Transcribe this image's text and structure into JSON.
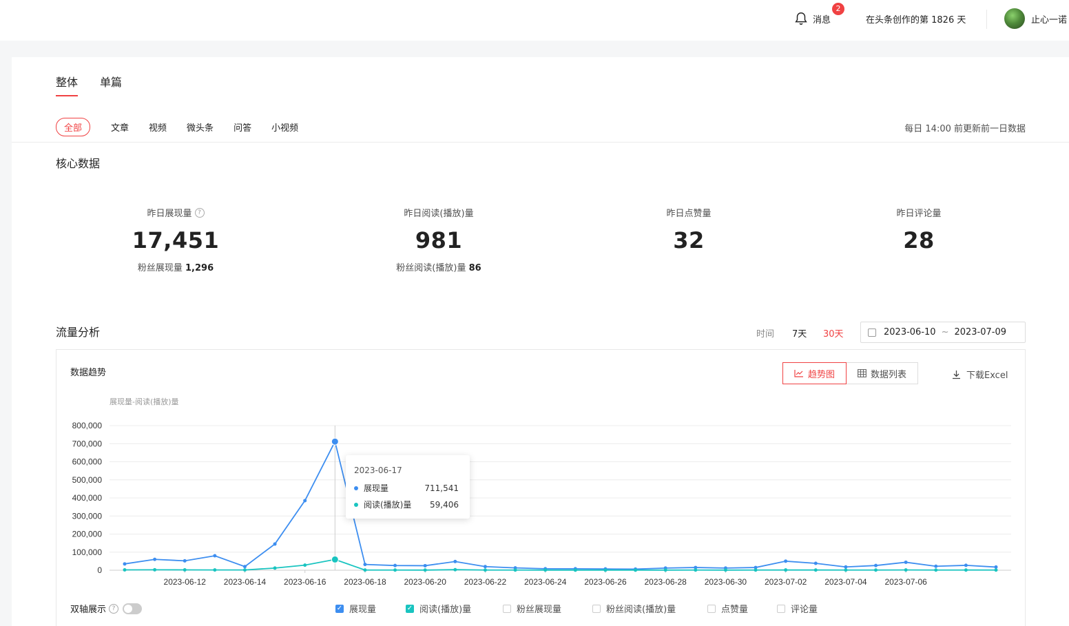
{
  "header": {
    "messages_label": "消息",
    "messages_badge": "2",
    "days_text": "在头条创作的第 1826 天",
    "username": "止心一诺"
  },
  "main_tabs": [
    {
      "label": "整体",
      "active": true
    },
    {
      "label": "单篇",
      "active": false
    }
  ],
  "sub_tabs": [
    {
      "label": "全部",
      "active": true
    },
    {
      "label": "文章"
    },
    {
      "label": "视频"
    },
    {
      "label": "微头条"
    },
    {
      "label": "问答"
    },
    {
      "label": "小视频"
    }
  ],
  "update_note": "每日 14:00 前更新前一日数据",
  "core": {
    "title": "核心数据",
    "metrics": [
      {
        "label": "昨日展现量",
        "value": "17,451",
        "sub_label": "粉丝展现量",
        "sub_value": "1,296",
        "has_help": true
      },
      {
        "label": "昨日阅读(播放)量",
        "value": "981",
        "sub_label": "粉丝阅读(播放)量",
        "sub_value": "86"
      },
      {
        "label": "昨日点赞量",
        "value": "32"
      },
      {
        "label": "昨日评论量",
        "value": "28"
      }
    ]
  },
  "traffic": {
    "title": "流量分析",
    "time_label": "时间",
    "ranges": [
      {
        "label": "7天",
        "active": false
      },
      {
        "label": "30天",
        "active": true
      }
    ],
    "date_start": "2023-06-10",
    "date_sep": "~",
    "date_end": "2023-07-09",
    "card_title": "数据趋势",
    "view_buttons": [
      {
        "label": "趋势图",
        "active": true,
        "icon": "trend-icon"
      },
      {
        "label": "数据列表",
        "active": false,
        "icon": "table-icon"
      }
    ],
    "download_label": "下载Excel",
    "axis_title": "展现量-阅读(播放)量",
    "tooltip": {
      "date": "2023-06-17",
      "rows": [
        {
          "name": "展现量",
          "value": "711,541"
        },
        {
          "name": "阅读(播放)量",
          "value": "59,406"
        }
      ]
    },
    "dual_axis_label": "双轴展示",
    "legend": [
      {
        "label": "展现量",
        "checked": true,
        "color": "#3d8ef0"
      },
      {
        "label": "阅读(播放)量",
        "checked": true,
        "color": "#19c4c0"
      },
      {
        "label": "粉丝展现量",
        "checked": false
      },
      {
        "label": "粉丝阅读(播放)量",
        "checked": false
      },
      {
        "label": "点赞量",
        "checked": false
      },
      {
        "label": "评论量",
        "checked": false
      }
    ]
  },
  "chart_data": {
    "type": "line",
    "x": [
      "2023-06-10",
      "2023-06-11",
      "2023-06-12",
      "2023-06-13",
      "2023-06-14",
      "2023-06-15",
      "2023-06-16",
      "2023-06-17",
      "2023-06-18",
      "2023-06-19",
      "2023-06-20",
      "2023-06-21",
      "2023-06-22",
      "2023-06-23",
      "2023-06-24",
      "2023-06-25",
      "2023-06-26",
      "2023-06-27",
      "2023-06-28",
      "2023-06-29",
      "2023-06-30",
      "2023-07-01",
      "2023-07-02",
      "2023-07-03",
      "2023-07-04",
      "2023-07-05",
      "2023-07-06",
      "2023-07-07",
      "2023-07-08",
      "2023-07-09"
    ],
    "tick_labels": [
      "2023-06-12",
      "2023-06-14",
      "2023-06-16",
      "2023-06-18",
      "2023-06-20",
      "2023-06-22",
      "2023-06-24",
      "2023-06-26",
      "2023-06-28",
      "2023-06-30",
      "2023-07-02",
      "2023-07-04",
      "2023-07-06"
    ],
    "y_ticks": [
      "0",
      "100,000",
      "200,000",
      "300,000",
      "400,000",
      "500,000",
      "600,000",
      "700,000",
      "800,000"
    ],
    "ylim": [
      0,
      800000
    ],
    "series": [
      {
        "name": "展现量",
        "color": "#3d8ef0",
        "values": [
          35000,
          60000,
          52000,
          80000,
          20000,
          145000,
          385000,
          711541,
          32000,
          26000,
          25000,
          48000,
          20000,
          13000,
          8000,
          8000,
          7000,
          6000,
          12000,
          15000,
          12000,
          15000,
          50000,
          38000,
          18000,
          26000,
          44000,
          22000,
          27000,
          17451
        ]
      },
      {
        "name": "阅读(播放)量",
        "color": "#19c4c0",
        "values": [
          2000,
          2500,
          2000,
          1500,
          1500,
          12000,
          28000,
          59406,
          1000,
          900,
          800,
          3000,
          1000,
          900,
          800,
          700,
          700,
          600,
          800,
          900,
          800,
          900,
          1200,
          1100,
          900,
          1000,
          1500,
          1000,
          1100,
          981
        ]
      }
    ],
    "highlight_index": 7,
    "grid": true
  }
}
